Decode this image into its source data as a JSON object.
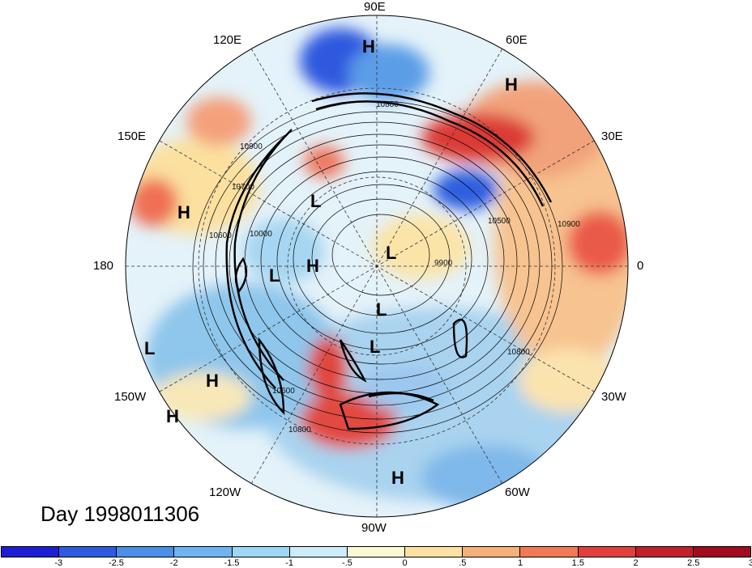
{
  "title": "Day 1998011306",
  "longitude_labels": {
    "lon_90e": "90E",
    "lon_60e": "60E",
    "lon_30e": "30E",
    "lon_0": "0",
    "lon_30w": "30W",
    "lon_60w": "60W",
    "lon_90w": "90W",
    "lon_120w": "120W",
    "lon_150w": "150W",
    "lon_180": "180",
    "lon_150e": "150E",
    "lon_120e": "120E"
  },
  "pressure_centers": [
    "H",
    "H",
    "H",
    "L",
    "L",
    "H",
    "L",
    "L",
    "L",
    "L",
    "H",
    "H",
    "H"
  ],
  "contour_labels": [
    "10800",
    "10900",
    "10700",
    "10600",
    "10000",
    "10500",
    "9900",
    "10800",
    "10600",
    "10800",
    "10900"
  ],
  "colorbar": {
    "colors": [
      "#1d1dd4",
      "#2c5be0",
      "#4a8ee8",
      "#6fb3f0",
      "#9ed6f6",
      "#ccecfa",
      "#fbf8d6",
      "#fbe1a2",
      "#f6b07a",
      "#f07a55",
      "#e03f3c",
      "#c11f2a",
      "#9e0c1e"
    ],
    "ticks": [
      "-3",
      "-2.5",
      "-2",
      "-1.5",
      "-1",
      "-.5",
      "0",
      ".5",
      "1",
      "1.5",
      "2",
      "2.5",
      "3"
    ]
  }
}
